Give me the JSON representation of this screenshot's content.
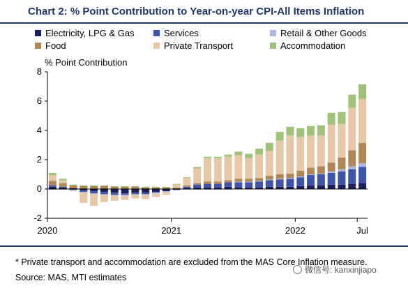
{
  "header": {
    "title": "Chart 2: % Point Contribution to Year-on-year CPI-All Items Inflation"
  },
  "footer": {
    "note": "* Private transport and accommodation are excluded from the MAS Core Inflation measure.",
    "source": "Source: MAS, MTI estimates",
    "watermark": "微信号: kanxinjiapo"
  },
  "chart_data": {
    "type": "bar",
    "stacked": true,
    "ylabel": "% Point Contribution",
    "ylim": [
      -2,
      8
    ],
    "yticks": [
      "8",
      "6",
      "4",
      "2",
      "0",
      "-2"
    ],
    "yticks_values": [
      8,
      6,
      4,
      2,
      0,
      -2
    ],
    "xtick_labels": [
      {
        "label": "2020",
        "index": 0
      },
      {
        "label": "2021",
        "index": 12
      },
      {
        "label": "2022",
        "index": 24
      },
      {
        "label": "Jul",
        "index": 30
      }
    ],
    "categories": [
      "Jan 2020",
      "Feb 2020",
      "Mar 2020",
      "Apr 2020",
      "May 2020",
      "Jun 2020",
      "Jul 2020",
      "Aug 2020",
      "Sep 2020",
      "Oct 2020",
      "Nov 2020",
      "Dec 2020",
      "Jan 2021",
      "Feb 2021",
      "Mar 2021",
      "Apr 2021",
      "May 2021",
      "Jun 2021",
      "Jul 2021",
      "Aug 2021",
      "Sep 2021",
      "Oct 2021",
      "Nov 2021",
      "Dec 2021",
      "Jan 2022",
      "Feb 2022",
      "Mar 2022",
      "Apr 2022",
      "May 2022",
      "Jun 2022",
      "Jul 2022"
    ],
    "series": [
      {
        "name": "Electricity, LPG & Gas",
        "color": "#1b1f5c",
        "values": [
          0.15,
          0.1,
          0.05,
          -0.1,
          -0.15,
          -0.2,
          -0.25,
          -0.3,
          -0.25,
          -0.25,
          -0.2,
          -0.15,
          -0.05,
          0.05,
          0.1,
          0.1,
          0.1,
          0.15,
          0.1,
          0.1,
          0.1,
          0.15,
          0.15,
          0.15,
          0.2,
          0.25,
          0.25,
          0.3,
          0.3,
          0.35,
          0.4
        ]
      },
      {
        "name": "Services",
        "color": "#3f54a8",
        "values": [
          0.1,
          0.05,
          -0.05,
          -0.1,
          -0.15,
          -0.15,
          -0.15,
          -0.1,
          -0.1,
          -0.1,
          -0.05,
          0.0,
          0.0,
          0.1,
          0.2,
          0.25,
          0.25,
          0.3,
          0.35,
          0.35,
          0.4,
          0.45,
          0.5,
          0.55,
          0.6,
          0.7,
          0.75,
          0.8,
          0.9,
          1.0,
          1.1
        ]
      },
      {
        "name": "Retail & Other Goods",
        "color": "#a9b4df",
        "values": [
          -0.05,
          -0.05,
          -0.05,
          -0.05,
          -0.05,
          -0.05,
          -0.05,
          -0.05,
          -0.05,
          -0.05,
          -0.05,
          -0.05,
          -0.05,
          -0.05,
          -0.05,
          -0.05,
          -0.05,
          -0.05,
          0.05,
          0.05,
          0.05,
          0.05,
          0.05,
          0.05,
          0.05,
          0.05,
          0.05,
          0.1,
          0.15,
          0.2,
          0.25
        ]
      },
      {
        "name": "Food",
        "color": "#b08656",
        "values": [
          0.3,
          0.25,
          0.2,
          0.2,
          0.2,
          0.2,
          0.15,
          0.15,
          0.15,
          0.1,
          0.1,
          0.1,
          0.1,
          0.1,
          0.1,
          0.15,
          0.15,
          0.15,
          0.2,
          0.2,
          0.2,
          0.25,
          0.3,
          0.3,
          0.4,
          0.45,
          0.5,
          0.6,
          0.8,
          1.1,
          1.4
        ]
      },
      {
        "name": "Private Transport",
        "color": "#e6c8a8",
        "values": [
          0.4,
          0.2,
          -0.05,
          -0.7,
          -0.8,
          -0.5,
          -0.35,
          -0.3,
          -0.25,
          -0.3,
          -0.25,
          -0.2,
          0.2,
          0.5,
          1.0,
          1.6,
          1.6,
          1.6,
          1.6,
          1.4,
          1.6,
          1.7,
          2.3,
          2.6,
          2.3,
          2.2,
          2.1,
          2.6,
          2.3,
          2.9,
          3.0
        ]
      },
      {
        "name": "Accommodation",
        "color": "#9ec27a",
        "values": [
          0.15,
          0.1,
          0.05,
          0.05,
          0.05,
          0.05,
          0.05,
          0.05,
          0.05,
          0.05,
          0.05,
          0.05,
          0.05,
          0.05,
          0.1,
          0.1,
          0.1,
          0.15,
          0.25,
          0.3,
          0.4,
          0.55,
          0.6,
          0.6,
          0.6,
          0.65,
          0.7,
          0.8,
          0.8,
          0.9,
          1.0
        ]
      }
    ],
    "legend_placement": "top",
    "grid": false
  }
}
